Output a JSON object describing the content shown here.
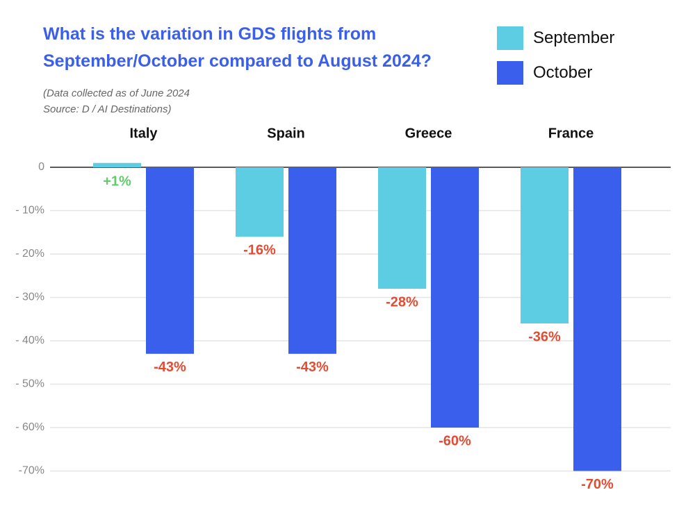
{
  "header": {
    "title": "What is the variation in GDS flights from September/October compared to August 2024?",
    "note_line_1": "(Data collected as of June 2024",
    "note_line_2": "Source: D / AI Destinations)"
  },
  "legend": {
    "position": "top-right",
    "items": [
      {
        "label": "September",
        "color": "#5dcde3"
      },
      {
        "label": "October",
        "color": "#3a5fed"
      }
    ]
  },
  "colors": {
    "title": "#3b5fe8",
    "positive_label": "#62cc6a",
    "negative_label": "#e24c34",
    "grid": "#e4e4e4",
    "zero_line": "#222222"
  },
  "chart_data": {
    "type": "bar",
    "title": "What is the variation in GDS flights from September/October compared to August 2024?",
    "xlabel": "",
    "ylabel": "",
    "categories": [
      "Italy",
      "Spain",
      "Greece",
      "France"
    ],
    "category_axis_position": "top",
    "series": [
      {
        "name": "September",
        "values": [
          1,
          -16,
          -28,
          -36
        ],
        "labels": [
          "+1%",
          "-16%",
          "-28%",
          "-36%"
        ],
        "color": "#5dcde3"
      },
      {
        "name": "October",
        "values": [
          -43,
          -43,
          -60,
          -70
        ],
        "labels": [
          "-43%",
          "-43%",
          "-60%",
          "-70%"
        ],
        "color": "#3a5fed"
      }
    ],
    "ylim": [
      -70,
      0
    ],
    "yticks": [
      0,
      -10,
      -20,
      -30,
      -40,
      -50,
      -60,
      -70
    ],
    "ytick_labels": [
      "0",
      "- 10%",
      "- 20%",
      "- 30%",
      "- 40%",
      "- 50%",
      "- 60%",
      "-70%"
    ],
    "grid": true,
    "legend_placement": "top-right"
  }
}
